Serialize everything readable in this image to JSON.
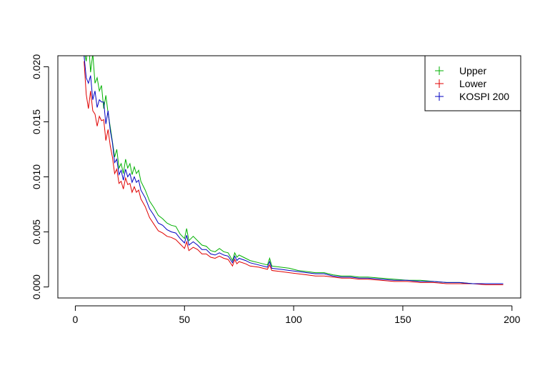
{
  "chart_data": {
    "type": "line",
    "title": "",
    "xlabel": "",
    "ylabel": "",
    "xlim": [
      -8,
      204
    ],
    "ylim": [
      -0.001,
      0.021
    ],
    "x_ticks": [
      0,
      50,
      100,
      150,
      200
    ],
    "x_tick_labels": [
      "0",
      "50",
      "100",
      "150",
      "200"
    ],
    "y_ticks": [
      0.0,
      0.005,
      0.01,
      0.015,
      0.02
    ],
    "y_tick_labels": [
      "0.000",
      "0.005",
      "0.010",
      "0.015",
      "0.020"
    ],
    "grid": false,
    "legend_position": "top-right",
    "series": [
      {
        "name": "Upper",
        "color": "#00b000",
        "points": [
          [
            4,
            0.0215
          ],
          [
            5,
            0.0205
          ],
          [
            6,
            0.0225
          ],
          [
            7,
            0.0195
          ],
          [
            8,
            0.0212
          ],
          [
            9,
            0.0185
          ],
          [
            10,
            0.019
          ],
          [
            11,
            0.0178
          ],
          [
            12,
            0.0183
          ],
          [
            13,
            0.0162
          ],
          [
            14,
            0.0174
          ],
          [
            15,
            0.0158
          ],
          [
            16,
            0.0145
          ],
          [
            17,
            0.0132
          ],
          [
            18,
            0.0118
          ],
          [
            19,
            0.0125
          ],
          [
            20,
            0.0108
          ],
          [
            21,
            0.0112
          ],
          [
            22,
            0.0103
          ],
          [
            23,
            0.0116
          ],
          [
            24,
            0.0108
          ],
          [
            25,
            0.0112
          ],
          [
            26,
            0.0102
          ],
          [
            27,
            0.0109
          ],
          [
            28,
            0.0103
          ],
          [
            29,
            0.0106
          ],
          [
            30,
            0.0096
          ],
          [
            32,
            0.0088
          ],
          [
            34,
            0.0078
          ],
          [
            36,
            0.0072
          ],
          [
            38,
            0.0065
          ],
          [
            40,
            0.0062
          ],
          [
            42,
            0.0058
          ],
          [
            44,
            0.0056
          ],
          [
            46,
            0.0055
          ],
          [
            48,
            0.0048
          ],
          [
            50,
            0.0044
          ],
          [
            51,
            0.0053
          ],
          [
            52,
            0.0042
          ],
          [
            54,
            0.0046
          ],
          [
            56,
            0.0042
          ],
          [
            58,
            0.0038
          ],
          [
            60,
            0.0037
          ],
          [
            62,
            0.0033
          ],
          [
            64,
            0.0032
          ],
          [
            66,
            0.0035
          ],
          [
            68,
            0.0032
          ],
          [
            70,
            0.0031
          ],
          [
            72,
            0.0024
          ],
          [
            73,
            0.0031
          ],
          [
            74,
            0.0027
          ],
          [
            75,
            0.0029
          ],
          [
            78,
            0.0026
          ],
          [
            80,
            0.0024
          ],
          [
            84,
            0.0022
          ],
          [
            88,
            0.002
          ],
          [
            89,
            0.0026
          ],
          [
            90,
            0.0019
          ],
          [
            94,
            0.0018
          ],
          [
            98,
            0.0017
          ],
          [
            102,
            0.0015
          ],
          [
            106,
            0.0014
          ],
          [
            110,
            0.0013
          ],
          [
            114,
            0.0013
          ],
          [
            118,
            0.0011
          ],
          [
            122,
            0.001
          ],
          [
            126,
            0.001
          ],
          [
            130,
            0.0009
          ],
          [
            134,
            0.0009
          ],
          [
            140,
            0.0008
          ],
          [
            146,
            0.0007
          ],
          [
            152,
            0.0006
          ],
          [
            158,
            0.0006
          ],
          [
            164,
            0.0005
          ],
          [
            170,
            0.0004
          ],
          [
            176,
            0.0004
          ],
          [
            182,
            0.0003
          ],
          [
            188,
            0.0003
          ],
          [
            196,
            0.0003
          ]
        ]
      },
      {
        "name": "Lower",
        "color": "#e00000",
        "points": [
          [
            4,
            0.0205
          ],
          [
            5,
            0.0175
          ],
          [
            6,
            0.0162
          ],
          [
            7,
            0.0178
          ],
          [
            8,
            0.016
          ],
          [
            9,
            0.0157
          ],
          [
            10,
            0.0146
          ],
          [
            11,
            0.0155
          ],
          [
            12,
            0.0151
          ],
          [
            13,
            0.0152
          ],
          [
            14,
            0.0133
          ],
          [
            15,
            0.0143
          ],
          [
            16,
            0.0128
          ],
          [
            17,
            0.0118
          ],
          [
            18,
            0.0103
          ],
          [
            19,
            0.0107
          ],
          [
            20,
            0.0094
          ],
          [
            21,
            0.0096
          ],
          [
            22,
            0.0089
          ],
          [
            23,
            0.0099
          ],
          [
            24,
            0.0093
          ],
          [
            25,
            0.0094
          ],
          [
            26,
            0.0086
          ],
          [
            27,
            0.0091
          ],
          [
            28,
            0.0086
          ],
          [
            29,
            0.0088
          ],
          [
            30,
            0.008
          ],
          [
            32,
            0.0073
          ],
          [
            34,
            0.0063
          ],
          [
            36,
            0.0057
          ],
          [
            38,
            0.0051
          ],
          [
            40,
            0.0049
          ],
          [
            42,
            0.0046
          ],
          [
            44,
            0.0045
          ],
          [
            46,
            0.0043
          ],
          [
            48,
            0.0039
          ],
          [
            50,
            0.0035
          ],
          [
            51,
            0.0041
          ],
          [
            52,
            0.0033
          ],
          [
            54,
            0.0036
          ],
          [
            56,
            0.0034
          ],
          [
            58,
            0.003
          ],
          [
            60,
            0.003
          ],
          [
            62,
            0.0027
          ],
          [
            64,
            0.0026
          ],
          [
            66,
            0.0028
          ],
          [
            68,
            0.0026
          ],
          [
            70,
            0.0025
          ],
          [
            72,
            0.0019
          ],
          [
            73,
            0.0025
          ],
          [
            74,
            0.0021
          ],
          [
            75,
            0.0023
          ],
          [
            78,
            0.0021
          ],
          [
            80,
            0.0019
          ],
          [
            84,
            0.0018
          ],
          [
            88,
            0.0016
          ],
          [
            89,
            0.002
          ],
          [
            90,
            0.0015
          ],
          [
            94,
            0.0014
          ],
          [
            98,
            0.0013
          ],
          [
            102,
            0.0012
          ],
          [
            106,
            0.0011
          ],
          [
            110,
            0.001
          ],
          [
            114,
            0.001
          ],
          [
            118,
            0.0009
          ],
          [
            122,
            0.0008
          ],
          [
            126,
            0.0008
          ],
          [
            130,
            0.0007
          ],
          [
            134,
            0.0007
          ],
          [
            140,
            0.0006
          ],
          [
            146,
            0.0005
          ],
          [
            152,
            0.0005
          ],
          [
            158,
            0.0004
          ],
          [
            164,
            0.0004
          ],
          [
            170,
            0.0003
          ],
          [
            176,
            0.0003
          ],
          [
            182,
            0.0003
          ],
          [
            188,
            0.0002
          ],
          [
            196,
            0.0002
          ]
        ]
      },
      {
        "name": "KOSPI 200",
        "color": "#0000c0",
        "points": [
          [
            4,
            0.021
          ],
          [
            5,
            0.019
          ],
          [
            6,
            0.0185
          ],
          [
            7,
            0.0192
          ],
          [
            8,
            0.017
          ],
          [
            9,
            0.0178
          ],
          [
            10,
            0.0163
          ],
          [
            11,
            0.017
          ],
          [
            12,
            0.0168
          ],
          [
            13,
            0.0168
          ],
          [
            14,
            0.0148
          ],
          [
            15,
            0.016
          ],
          [
            16,
            0.0142
          ],
          [
            17,
            0.0131
          ],
          [
            18,
            0.0113
          ],
          [
            19,
            0.0116
          ],
          [
            20,
            0.0102
          ],
          [
            21,
            0.0106
          ],
          [
            22,
            0.0097
          ],
          [
            23,
            0.0107
          ],
          [
            24,
            0.01
          ],
          [
            25,
            0.0103
          ],
          [
            26,
            0.0095
          ],
          [
            27,
            0.01
          ],
          [
            28,
            0.0095
          ],
          [
            29,
            0.0097
          ],
          [
            30,
            0.0088
          ],
          [
            32,
            0.0081
          ],
          [
            34,
            0.0071
          ],
          [
            36,
            0.0065
          ],
          [
            38,
            0.0058
          ],
          [
            40,
            0.0056
          ],
          [
            42,
            0.0052
          ],
          [
            44,
            0.005
          ],
          [
            46,
            0.0049
          ],
          [
            48,
            0.0044
          ],
          [
            50,
            0.004
          ],
          [
            51,
            0.0047
          ],
          [
            52,
            0.0038
          ],
          [
            54,
            0.0041
          ],
          [
            56,
            0.0038
          ],
          [
            58,
            0.0034
          ],
          [
            60,
            0.0034
          ],
          [
            62,
            0.003
          ],
          [
            64,
            0.0029
          ],
          [
            66,
            0.0031
          ],
          [
            68,
            0.0029
          ],
          [
            70,
            0.0028
          ],
          [
            72,
            0.0022
          ],
          [
            73,
            0.0028
          ],
          [
            74,
            0.0024
          ],
          [
            75,
            0.0026
          ],
          [
            78,
            0.0024
          ],
          [
            80,
            0.0022
          ],
          [
            84,
            0.002
          ],
          [
            88,
            0.0018
          ],
          [
            89,
            0.0023
          ],
          [
            90,
            0.0017
          ],
          [
            94,
            0.0016
          ],
          [
            98,
            0.0015
          ],
          [
            102,
            0.0014
          ],
          [
            106,
            0.0013
          ],
          [
            110,
            0.0012
          ],
          [
            114,
            0.0012
          ],
          [
            118,
            0.001
          ],
          [
            122,
            0.0009
          ],
          [
            126,
            0.0009
          ],
          [
            130,
            0.0008
          ],
          [
            134,
            0.0008
          ],
          [
            140,
            0.0007
          ],
          [
            146,
            0.0006
          ],
          [
            152,
            0.0006
          ],
          [
            158,
            0.0005
          ],
          [
            164,
            0.0005
          ],
          [
            170,
            0.0004
          ],
          [
            176,
            0.0004
          ],
          [
            182,
            0.0003
          ],
          [
            188,
            0.0003
          ],
          [
            196,
            0.0003
          ]
        ]
      }
    ]
  }
}
